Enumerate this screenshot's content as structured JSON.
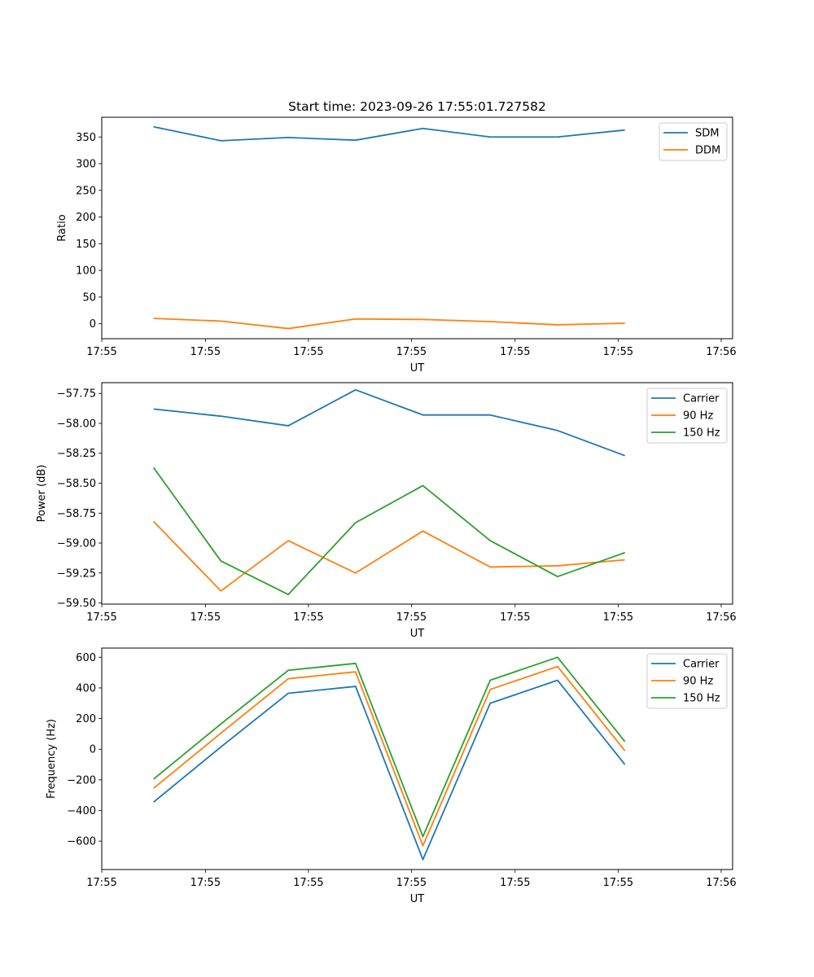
{
  "chart_data": [
    {
      "type": "line",
      "title": "Start time: 2023-09-26 17:55:01.727582",
      "xlabel": "UT",
      "ylabel": "Ratio",
      "x": [
        1,
        2,
        3,
        4,
        5,
        6,
        7,
        8
      ],
      "xlim": [
        0.23,
        9.6
      ],
      "xticks": [
        0.23,
        1.77,
        3.3,
        4.83,
        6.37,
        7.9,
        9.43
      ],
      "xtick_labels": [
        "17:55",
        "17:55",
        "17:55",
        "17:55",
        "17:55",
        "17:55",
        "17:56"
      ],
      "ylim": [
        -28,
        387
      ],
      "yticks": [
        0,
        50,
        100,
        150,
        200,
        250,
        300,
        350
      ],
      "ytick_labels": [
        "0",
        "50",
        "100",
        "150",
        "200",
        "250",
        "300",
        "350"
      ],
      "legend_position": "top-right",
      "series": [
        {
          "name": "SDM",
          "color": "#1f77b4",
          "values": [
            369,
            343,
            349,
            344,
            366,
            350,
            350,
            363
          ]
        },
        {
          "name": "DDM",
          "color": "#ff7f0e",
          "values": [
            10,
            5,
            -9,
            9,
            8,
            4,
            -2,
            1
          ]
        }
      ]
    },
    {
      "type": "line",
      "title": "",
      "xlabel": "UT",
      "ylabel": "Power (dB)",
      "x": [
        1,
        2,
        3,
        4,
        5,
        6,
        7,
        8
      ],
      "xlim": [
        0.23,
        9.6
      ],
      "xticks": [
        0.23,
        1.77,
        3.3,
        4.83,
        6.37,
        7.9,
        9.43
      ],
      "xtick_labels": [
        "17:55",
        "17:55",
        "17:55",
        "17:55",
        "17:55",
        "17:55",
        "17:56"
      ],
      "ylim": [
        -59.51,
        -57.66
      ],
      "yticks": [
        -59.5,
        -59.25,
        -59.0,
        -58.75,
        -58.5,
        -58.25,
        -58.0,
        -57.75
      ],
      "ytick_labels": [
        "−59.50",
        "−59.25",
        "−59.00",
        "−58.75",
        "−58.50",
        "−58.25",
        "−58.00",
        "−57.75"
      ],
      "legend_position": "top-right",
      "series": [
        {
          "name": "Carrier",
          "color": "#1f77b4",
          "values": [
            -57.88,
            -57.94,
            -58.02,
            -57.72,
            -57.93,
            -57.93,
            -58.06,
            -58.27
          ]
        },
        {
          "name": "90 Hz",
          "color": "#ff7f0e",
          "values": [
            -58.82,
            -59.4,
            -58.98,
            -59.25,
            -58.9,
            -59.2,
            -59.19,
            -59.14
          ]
        },
        {
          "name": "150 Hz",
          "color": "#2ca02c",
          "values": [
            -58.37,
            -59.15,
            -59.43,
            -58.83,
            -58.52,
            -58.98,
            -59.28,
            -59.08
          ]
        }
      ]
    },
    {
      "type": "line",
      "title": "",
      "xlabel": "UT",
      "ylabel": "Frequency (Hz)",
      "x": [
        1,
        2,
        3,
        4,
        5,
        6,
        7,
        8
      ],
      "xlim": [
        0.23,
        9.6
      ],
      "xticks": [
        0.23,
        1.77,
        3.3,
        4.83,
        6.37,
        7.9,
        9.43
      ],
      "xtick_labels": [
        "17:55",
        "17:55",
        "17:55",
        "17:55",
        "17:55",
        "17:55",
        "17:56"
      ],
      "ylim": [
        -785,
        660
      ],
      "yticks": [
        -600,
        -400,
        -200,
        0,
        200,
        400,
        600
      ],
      "ytick_labels": [
        "−600",
        "−400",
        "−200",
        "0",
        "200",
        "400",
        "600"
      ],
      "legend_position": "top-right",
      "series": [
        {
          "name": "Carrier",
          "color": "#1f77b4",
          "values": [
            -345,
            15,
            365,
            410,
            -720,
            300,
            450,
            -100
          ]
        },
        {
          "name": "90 Hz",
          "color": "#ff7f0e",
          "values": [
            -255,
            105,
            460,
            505,
            -630,
            390,
            540,
            -10
          ]
        },
        {
          "name": "150 Hz",
          "color": "#2ca02c",
          "values": [
            -195,
            165,
            515,
            560,
            -570,
            450,
            600,
            50
          ]
        }
      ]
    }
  ]
}
